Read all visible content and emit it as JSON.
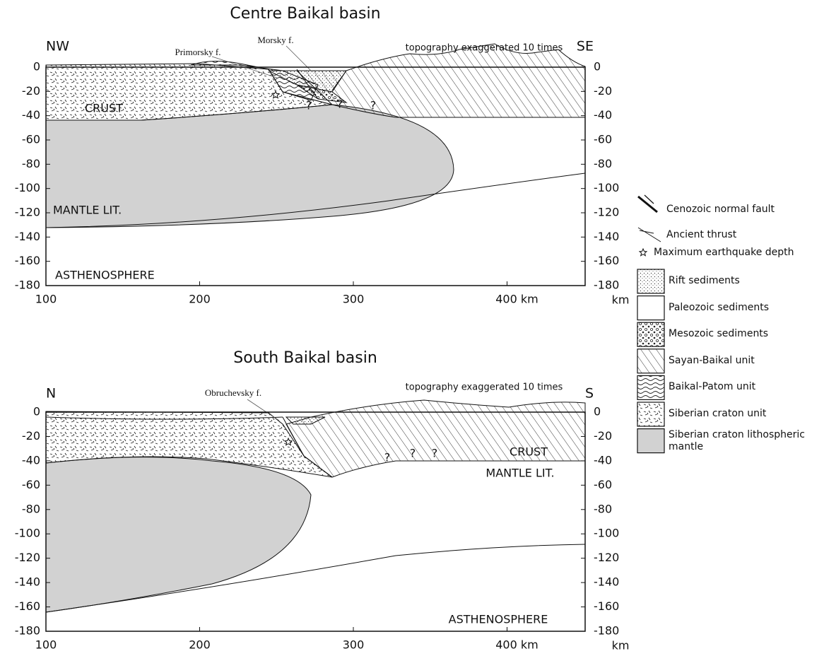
{
  "panels": [
    {
      "title": "Centre Baikal basin",
      "left_label": "NW",
      "right_label": "SE",
      "note": "topography exaggerated 10 times",
      "faults": [
        "Primorsky f.",
        "Morsky f."
      ],
      "crust": "CRUST",
      "mantle": "MANTLE LIT.",
      "asthenosphere": "ASTHENOSPHERE",
      "uncertain": "?",
      "depth_ticks": [
        "0",
        "-20",
        "-40",
        "-60",
        "-80",
        "-100",
        "-120",
        "-140",
        "-160",
        "-180"
      ],
      "distance_ticks": [
        "100",
        "200",
        "300",
        "400 km"
      ],
      "axis_unit": "km"
    },
    {
      "title": "South Baikal basin",
      "left_label": "N",
      "right_label": "S",
      "note": "topography exaggerated 10 times",
      "faults": [
        "Obruchevsky f."
      ],
      "crust": "CRUST",
      "mantle": "MANTLE LIT.",
      "asthenosphere": "ASTHENOSPHERE",
      "uncertain": "?",
      "depth_ticks": [
        "0",
        "-20",
        "-40",
        "-60",
        "-80",
        "-100",
        "-120",
        "-140",
        "-160",
        "-180"
      ],
      "distance_ticks": [
        "100",
        "200",
        "300",
        "400 km"
      ],
      "axis_unit": "km"
    }
  ],
  "legend": {
    "symbols": [
      "Cenozoic normal fault",
      "Ancient thrust",
      "Maximum earthquake depth"
    ],
    "units": [
      "Rift sediments",
      "Paleozoic sediments",
      "Mesozoic sediments",
      "Sayan-Baikal unit",
      "Baikal-Patom unit",
      "Siberian craton unit",
      "Siberian craton lithospheric mantle"
    ]
  }
}
